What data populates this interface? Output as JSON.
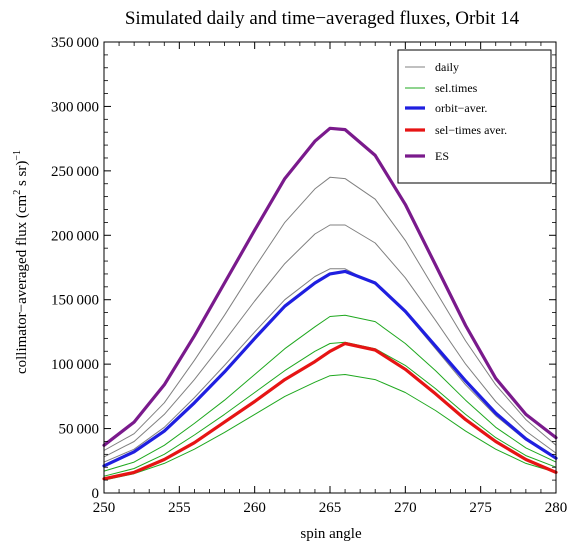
{
  "chart_data": {
    "type": "line",
    "title": "Simulated daily and time−averaged fluxes, Orbit 14",
    "xlabel": "spin angle",
    "ylabel": "collimator−averaged flux (cm",
    "ylabel_sup1": "2",
    "ylabel_mid": " s sr)",
    "ylabel_sup2": "−1",
    "xlim": [
      250,
      280
    ],
    "ylim": [
      0,
      350000
    ],
    "x_ticks": [
      250,
      255,
      260,
      265,
      270,
      275,
      280
    ],
    "y_ticks": [
      0,
      50000,
      100000,
      150000,
      200000,
      250000,
      300000,
      350000
    ],
    "y_tick_labels": [
      "0",
      "50 000",
      "100 000",
      "150 000",
      "200 000",
      "250 000",
      "300 000",
      "350 000"
    ],
    "grid": false,
    "legend_position": "top-right",
    "legend": [
      {
        "label": "daily",
        "color": "#808080",
        "width": 1
      },
      {
        "label": "sel.times",
        "color": "#1fa81f",
        "width": 1
      },
      {
        "label": "orbit−aver.",
        "color": "#1f1fe0",
        "width": 3.2
      },
      {
        "label": "sel−times aver.",
        "color": "#e61414",
        "width": 3.2
      },
      {
        "label": "ES",
        "color": "#7a1a8c",
        "width": 3.2
      }
    ],
    "x": [
      250,
      252,
      254,
      256,
      258,
      260,
      262,
      264,
      265,
      266,
      268,
      270,
      272,
      274,
      276,
      278,
      280
    ],
    "series": [
      {
        "group": "daily",
        "color": "#808080",
        "width": 1,
        "values": [
          33000,
          46000,
          70000,
          103000,
          138000,
          175000,
          210000,
          236000,
          245000,
          244000,
          228000,
          196000,
          157000,
          118000,
          84000,
          57000,
          37000
        ]
      },
      {
        "group": "daily",
        "color": "#808080",
        "width": 1,
        "values": [
          28000,
          40000,
          61000,
          88000,
          118000,
          149000,
          178000,
          201000,
          208000,
          208000,
          194000,
          167000,
          134000,
          100000,
          71000,
          48000,
          31000
        ]
      },
      {
        "group": "daily",
        "color": "#808080",
        "width": 1,
        "values": [
          24000,
          34000,
          51000,
          74000,
          99000,
          125000,
          150000,
          168000,
          174000,
          174000,
          162000,
          140000,
          112000,
          84000,
          60000,
          41000,
          27000
        ]
      },
      {
        "group": "sel.times",
        "color": "#1fa81f",
        "width": 1,
        "values": [
          17000,
          24000,
          37000,
          54000,
          72000,
          92000,
          112000,
          129000,
          137000,
          138000,
          133000,
          116000,
          95000,
          72000,
          51000,
          35000,
          24000
        ]
      },
      {
        "group": "sel.times",
        "color": "#1fa81f",
        "width": 1,
        "values": [
          13000,
          19000,
          30000,
          45000,
          61000,
          78000,
          95000,
          110000,
          116000,
          117000,
          112000,
          99000,
          81000,
          61000,
          43000,
          29000,
          20000
        ]
      },
      {
        "group": "sel.times",
        "color": "#1fa81f",
        "width": 1,
        "values": [
          10000,
          15000,
          23000,
          34000,
          47000,
          61000,
          75000,
          86000,
          91000,
          92000,
          88000,
          78000,
          64000,
          48000,
          34000,
          23000,
          16000
        ]
      },
      {
        "name": "orbit−aver.",
        "color": "#1f1fe0",
        "width": 3.2,
        "values": [
          21000,
          32000,
          48000,
          70000,
          94000,
          120000,
          145000,
          163000,
          170000,
          172000,
          163000,
          141000,
          114000,
          87000,
          62000,
          42000,
          27000
        ]
      },
      {
        "name": "sel−times aver.",
        "color": "#e61414",
        "width": 3.2,
        "values": [
          11000,
          16000,
          26000,
          39000,
          55000,
          71000,
          88000,
          102000,
          110000,
          116000,
          111000,
          96000,
          77000,
          57000,
          40000,
          26000,
          16000
        ]
      },
      {
        "name": "ES",
        "color": "#7a1a8c",
        "width": 3.2,
        "values": [
          37000,
          55000,
          84000,
          122000,
          163000,
          204000,
          244000,
          273000,
          283000,
          282000,
          262000,
          224000,
          177000,
          130000,
          89000,
          61000,
          43000
        ]
      }
    ]
  }
}
